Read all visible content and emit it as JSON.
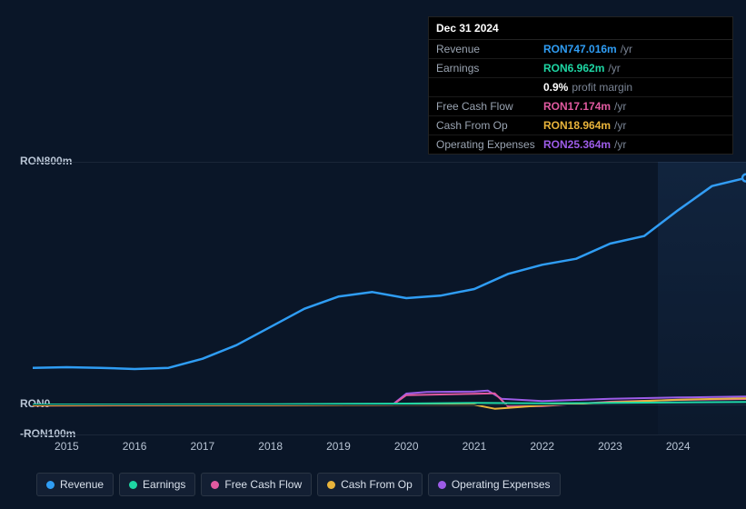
{
  "background_color": "#0a1628",
  "tooltip": {
    "date": "Dec 31 2024",
    "rows": [
      {
        "label": "Revenue",
        "value": "RON747.016m",
        "unit": "/yr",
        "color": "#2f9df4"
      },
      {
        "label": "Earnings",
        "value": "RON6.962m",
        "unit": "/yr",
        "color": "#1ed6a4"
      },
      {
        "label": "",
        "value": "0.9%",
        "unit": "profit margin",
        "color": "#ffffff"
      },
      {
        "label": "Free Cash Flow",
        "value": "RON17.174m",
        "unit": "/yr",
        "color": "#e15aa0"
      },
      {
        "label": "Cash From Op",
        "value": "RON18.964m",
        "unit": "/yr",
        "color": "#e9b43b"
      },
      {
        "label": "Operating Expenses",
        "value": "RON25.364m",
        "unit": "/yr",
        "color": "#9d5ce8"
      }
    ]
  },
  "chart": {
    "type": "line",
    "y_axis": {
      "min": -100,
      "max": 800,
      "ticks": [
        {
          "value": 800,
          "label": "RON800m"
        },
        {
          "value": 0,
          "label": "RON0"
        },
        {
          "value": -100,
          "label": "-RON100m"
        }
      ],
      "grid_color": "#1a2638"
    },
    "x_axis": {
      "min": 2014.5,
      "max": 2025.0,
      "tick_labels": [
        "2015",
        "2016",
        "2017",
        "2018",
        "2019",
        "2020",
        "2021",
        "2022",
        "2023",
        "2024"
      ],
      "tick_positions": [
        2015,
        2016,
        2017,
        2018,
        2019,
        2020,
        2021,
        2022,
        2023,
        2024
      ]
    },
    "highlight_band": {
      "from": 2023.7,
      "to": 2025.0,
      "color": "rgba(80,160,255,0.08)"
    },
    "series": [
      {
        "name": "Revenue",
        "color": "#2f9df4",
        "stroke_width": 2.5,
        "points": [
          [
            2014.5,
            120
          ],
          [
            2015.0,
            122
          ],
          [
            2015.5,
            120
          ],
          [
            2016.0,
            116
          ],
          [
            2016.5,
            120
          ],
          [
            2017.0,
            150
          ],
          [
            2017.5,
            195
          ],
          [
            2018.0,
            255
          ],
          [
            2018.5,
            315
          ],
          [
            2019.0,
            355
          ],
          [
            2019.5,
            370
          ],
          [
            2020.0,
            350
          ],
          [
            2020.5,
            358
          ],
          [
            2021.0,
            380
          ],
          [
            2021.5,
            430
          ],
          [
            2022.0,
            460
          ],
          [
            2022.5,
            480
          ],
          [
            2023.0,
            530
          ],
          [
            2023.5,
            555
          ],
          [
            2024.0,
            640
          ],
          [
            2024.5,
            720
          ],
          [
            2025.0,
            747
          ]
        ]
      },
      {
        "name": "Operating Expenses",
        "color": "#9d5ce8",
        "stroke_width": 2,
        "points": [
          [
            2014.5,
            -2
          ],
          [
            2016.0,
            -2
          ],
          [
            2018.0,
            -1
          ],
          [
            2019.8,
            -1
          ],
          [
            2020.0,
            35
          ],
          [
            2020.3,
            40
          ],
          [
            2021.0,
            42
          ],
          [
            2021.2,
            45
          ],
          [
            2021.4,
            18
          ],
          [
            2022.0,
            10
          ],
          [
            2023.0,
            18
          ],
          [
            2024.0,
            22
          ],
          [
            2025.0,
            25
          ]
        ]
      },
      {
        "name": "Free Cash Flow",
        "color": "#e15aa0",
        "stroke_width": 2,
        "points": [
          [
            2014.5,
            -5
          ],
          [
            2016.0,
            -4
          ],
          [
            2018.0,
            -3
          ],
          [
            2019.8,
            -2
          ],
          [
            2020.0,
            30
          ],
          [
            2020.5,
            32
          ],
          [
            2021.0,
            34
          ],
          [
            2021.3,
            36
          ],
          [
            2021.5,
            -8
          ],
          [
            2022.0,
            -6
          ],
          [
            2023.0,
            8
          ],
          [
            2024.0,
            14
          ],
          [
            2025.0,
            17
          ]
        ]
      },
      {
        "name": "Cash From Op",
        "color": "#e9b43b",
        "stroke_width": 2,
        "points": [
          [
            2014.5,
            -4
          ],
          [
            2016.0,
            -3
          ],
          [
            2018.0,
            -3
          ],
          [
            2020.0,
            -2
          ],
          [
            2021.0,
            -2
          ],
          [
            2021.3,
            -15
          ],
          [
            2021.5,
            -12
          ],
          [
            2022.0,
            -4
          ],
          [
            2023.0,
            6
          ],
          [
            2024.0,
            15
          ],
          [
            2025.0,
            19
          ]
        ]
      },
      {
        "name": "Earnings",
        "color": "#1ed6a4",
        "stroke_width": 2,
        "points": [
          [
            2014.5,
            -1
          ],
          [
            2016.0,
            -1
          ],
          [
            2018.0,
            0
          ],
          [
            2020.0,
            2
          ],
          [
            2021.0,
            4
          ],
          [
            2022.0,
            3
          ],
          [
            2023.0,
            4
          ],
          [
            2024.0,
            6
          ],
          [
            2025.0,
            7
          ]
        ]
      }
    ]
  },
  "legend": [
    {
      "label": "Revenue",
      "color": "#2f9df4"
    },
    {
      "label": "Earnings",
      "color": "#1ed6a4"
    },
    {
      "label": "Free Cash Flow",
      "color": "#e15aa0"
    },
    {
      "label": "Cash From Op",
      "color": "#e9b43b"
    },
    {
      "label": "Operating Expenses",
      "color": "#9d5ce8"
    }
  ],
  "typography": {
    "axis_fontsize": 12,
    "legend_fontsize": 12,
    "tooltip_fontsize": 12
  }
}
